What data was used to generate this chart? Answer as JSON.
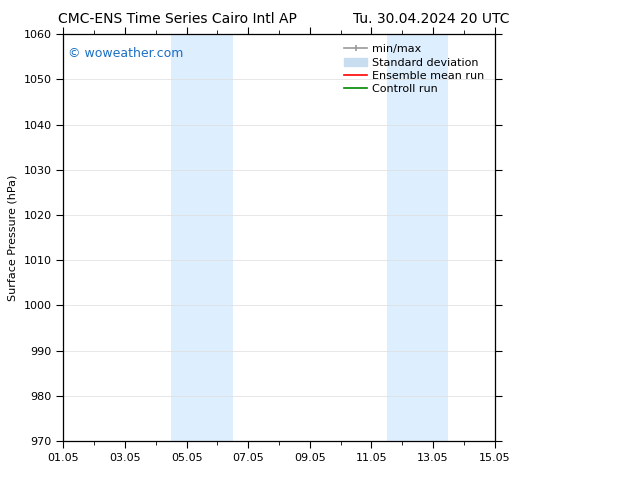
{
  "title_left": "CMC-ENS Time Series Cairo Intl AP",
  "title_right": "Tu. 30.04.2024 20 UTC",
  "ylabel": "Surface Pressure (hPa)",
  "ylim": [
    970,
    1060
  ],
  "yticks": [
    970,
    980,
    990,
    1000,
    1010,
    1020,
    1030,
    1040,
    1050,
    1060
  ],
  "xtick_labels": [
    "01.05",
    "03.05",
    "05.05",
    "07.05",
    "09.05",
    "11.05",
    "13.05",
    "15.05"
  ],
  "xtick_positions": [
    0,
    2,
    4,
    6,
    8,
    10,
    12,
    14
  ],
  "xlim": [
    0,
    14
  ],
  "shaded_bands": [
    {
      "x_start": 3.5,
      "x_end": 4.5
    },
    {
      "x_start": 4.5,
      "x_end": 5.5
    },
    {
      "x_start": 10.5,
      "x_end": 11.5
    },
    {
      "x_start": 11.5,
      "x_end": 12.5
    }
  ],
  "watermark": "© woweather.com",
  "watermark_color": "#1a6fc4",
  "background_color": "#ffffff",
  "plot_bg_color": "#ffffff",
  "band_color": "#ddeeff",
  "grid_color": "#dddddd",
  "title_fontsize": 10,
  "label_fontsize": 8,
  "tick_fontsize": 8,
  "legend_fontsize": 8,
  "minmax_color": "#999999",
  "std_color": "#c8ddf0",
  "ensemble_color": "#ff0000",
  "control_color": "#008800"
}
